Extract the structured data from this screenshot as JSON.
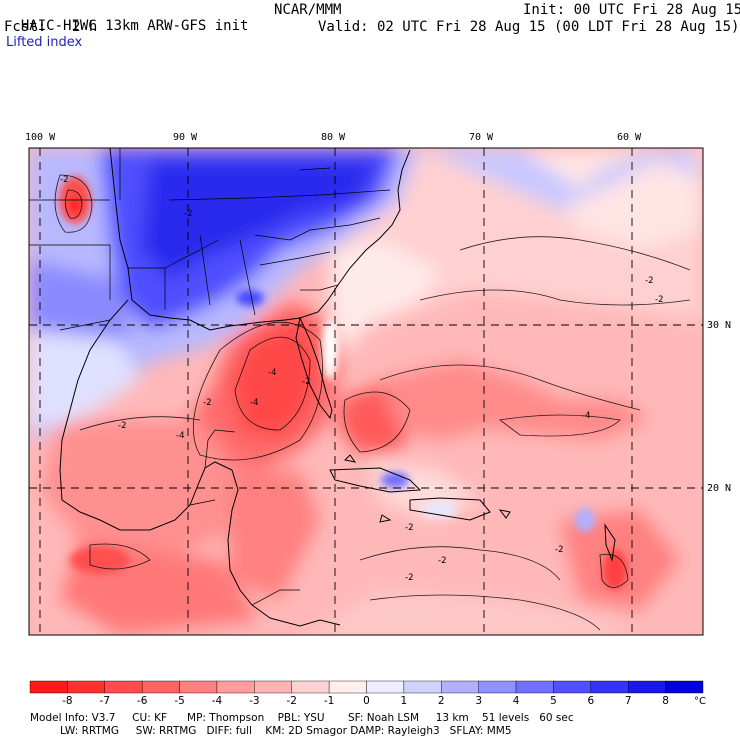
{
  "header": {
    "model_title": "HAIC-HIWC 13km ARW-GFS init",
    "org": "NCAR/MMM",
    "init_line": "Init: 00 UTC Fri 28 Aug 15",
    "fcst_label": "Fcst:",
    "fcst_value": "2 h",
    "valid_line": "Valid: 02 UTC Fri 28 Aug 15 (00 LDT Fri 28 Aug 15)",
    "field_name": "Lifted index"
  },
  "map": {
    "lon_labels": [
      "100 W",
      "90 W",
      "80 W",
      "70 W",
      "60 W"
    ],
    "lat_labels": [
      "30 N",
      "20 N"
    ],
    "contour_labels": [
      "-2",
      "-2",
      "-2",
      "-4",
      "-2",
      "-2",
      "-4",
      "-4",
      "-2",
      "-2",
      "-2",
      "-2",
      "-2",
      "-2",
      "-4"
    ]
  },
  "colorbar": {
    "unit": "°C",
    "tick_labels": [
      "-8",
      "-7",
      "-6",
      "-5",
      "-4",
      "-3",
      "-2",
      "-1",
      "0",
      "1",
      "2",
      "3",
      "4",
      "5",
      "6",
      "7",
      "8"
    ],
    "colors": [
      "#ff1a1a",
      "#ff3030",
      "#ff4c4c",
      "#ff6464",
      "#ff8080",
      "#ff9c9c",
      "#ffb4b4",
      "#ffd2d2",
      "#ffeeee",
      "#eeeeff",
      "#d2d2ff",
      "#b0b0ff",
      "#9090ff",
      "#7070ff",
      "#5050ff",
      "#3434f4",
      "#1818e8",
      "#0000dd"
    ]
  },
  "footer": {
    "line1": "Model Info: V3.7     CU: KF      MP: Thompson    PBL: YSU       SF: Noah LSM     13 km    51 levels   60 sec",
    "line2": "         LW: RRTMG     SW: RRTMG   DIFF: full    KM: 2D Smagor DAMP: Rayleigh3   SFLAY: MM5"
  }
}
